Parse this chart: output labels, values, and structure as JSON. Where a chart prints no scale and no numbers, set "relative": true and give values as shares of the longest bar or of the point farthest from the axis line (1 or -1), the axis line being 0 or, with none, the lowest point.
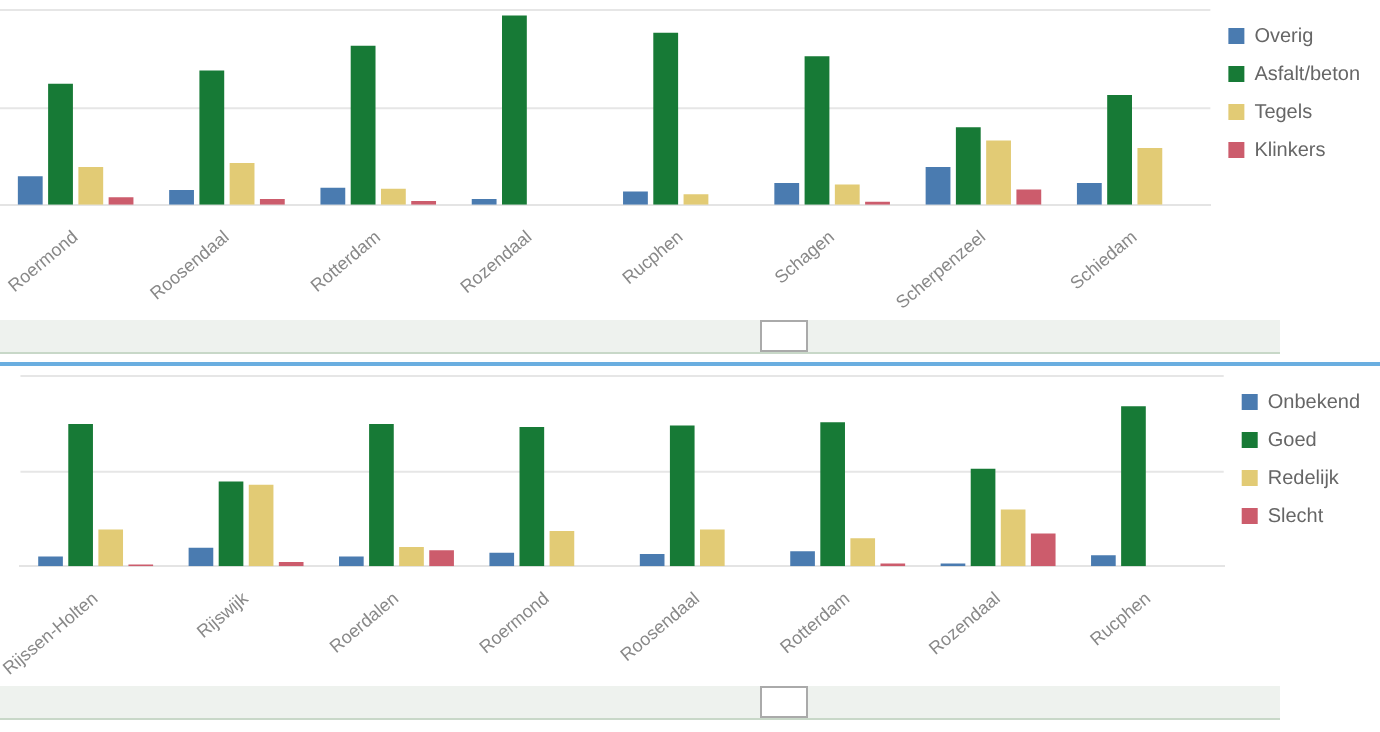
{
  "chart_data": [
    {
      "type": "bar",
      "relative": true,
      "legend": "right",
      "tick_labels": "x",
      "ref_lines": [
        {
          "axis": "y",
          "value": 0.51,
          "color": "#e6e6e6"
        },
        {
          "axis": "y",
          "value": 1.03,
          "color": "#e6e6e6"
        }
      ],
      "categories": [
        "Roermond",
        "Roosendaal",
        "Rotterdam",
        "Rozendaal",
        "Rucphen",
        "Schagen",
        "Scherpenzeel",
        "Schiedam"
      ],
      "series": [
        {
          "name": "Overig",
          "color": "#4a7bb0",
          "values": [
            0.15,
            0.078,
            0.09,
            0.03,
            0.07,
            0.115,
            0.2,
            0.115
          ]
        },
        {
          "name": "Asfalt/beton",
          "color": "#177a36",
          "values": [
            0.64,
            0.71,
            0.84,
            1,
            0.91,
            0.785,
            0.41,
            0.58
          ]
        },
        {
          "name": "Tegels",
          "color": "#e2cb75",
          "values": [
            0.2,
            0.22,
            0.085,
            0,
            0.055,
            0.107,
            0.34,
            0.3
          ]
        },
        {
          "name": "Klinkers",
          "color": "#cc5c6c",
          "values": [
            0.04,
            0.03,
            0.02,
            0,
            0,
            0.015,
            0.08,
            null
          ]
        }
      ]
    },
    {
      "type": "bar",
      "relative": true,
      "legend": "right",
      "tick_labels": "x",
      "ref_lines": [
        {
          "axis": "y",
          "value": 0.59,
          "color": "#e6e6e6"
        },
        {
          "axis": "y",
          "value": 1.19,
          "color": "#e6e6e6"
        }
      ],
      "categories": [
        "Rijssen-Holten",
        "Rijswijk",
        "Roerdalen",
        "Roermond",
        "Roosendaal",
        "Rotterdam",
        "Rozendaal",
        "Rucphen"
      ],
      "series": [
        {
          "name": "Onbekend",
          "color": "#4a7bb0",
          "values": [
            0.06,
            0.115,
            0.06,
            0.085,
            0.077,
            0.094,
            0.017,
            0.068
          ]
        },
        {
          "name": "Goed",
          "color": "#177a36",
          "values": [
            0.89,
            0.53,
            0.89,
            0.87,
            0.88,
            0.9,
            0.61,
            1
          ]
        },
        {
          "name": "Redelijk",
          "color": "#e2cb75",
          "values": [
            0.23,
            0.51,
            0.12,
            0.22,
            0.23,
            0.175,
            0.355,
            null
          ]
        },
        {
          "name": "Slecht",
          "color": "#cc5c6c",
          "values": [
            0.01,
            0.026,
            0.1,
            0,
            0,
            0.017,
            0.205,
            null
          ]
        }
      ]
    }
  ]
}
